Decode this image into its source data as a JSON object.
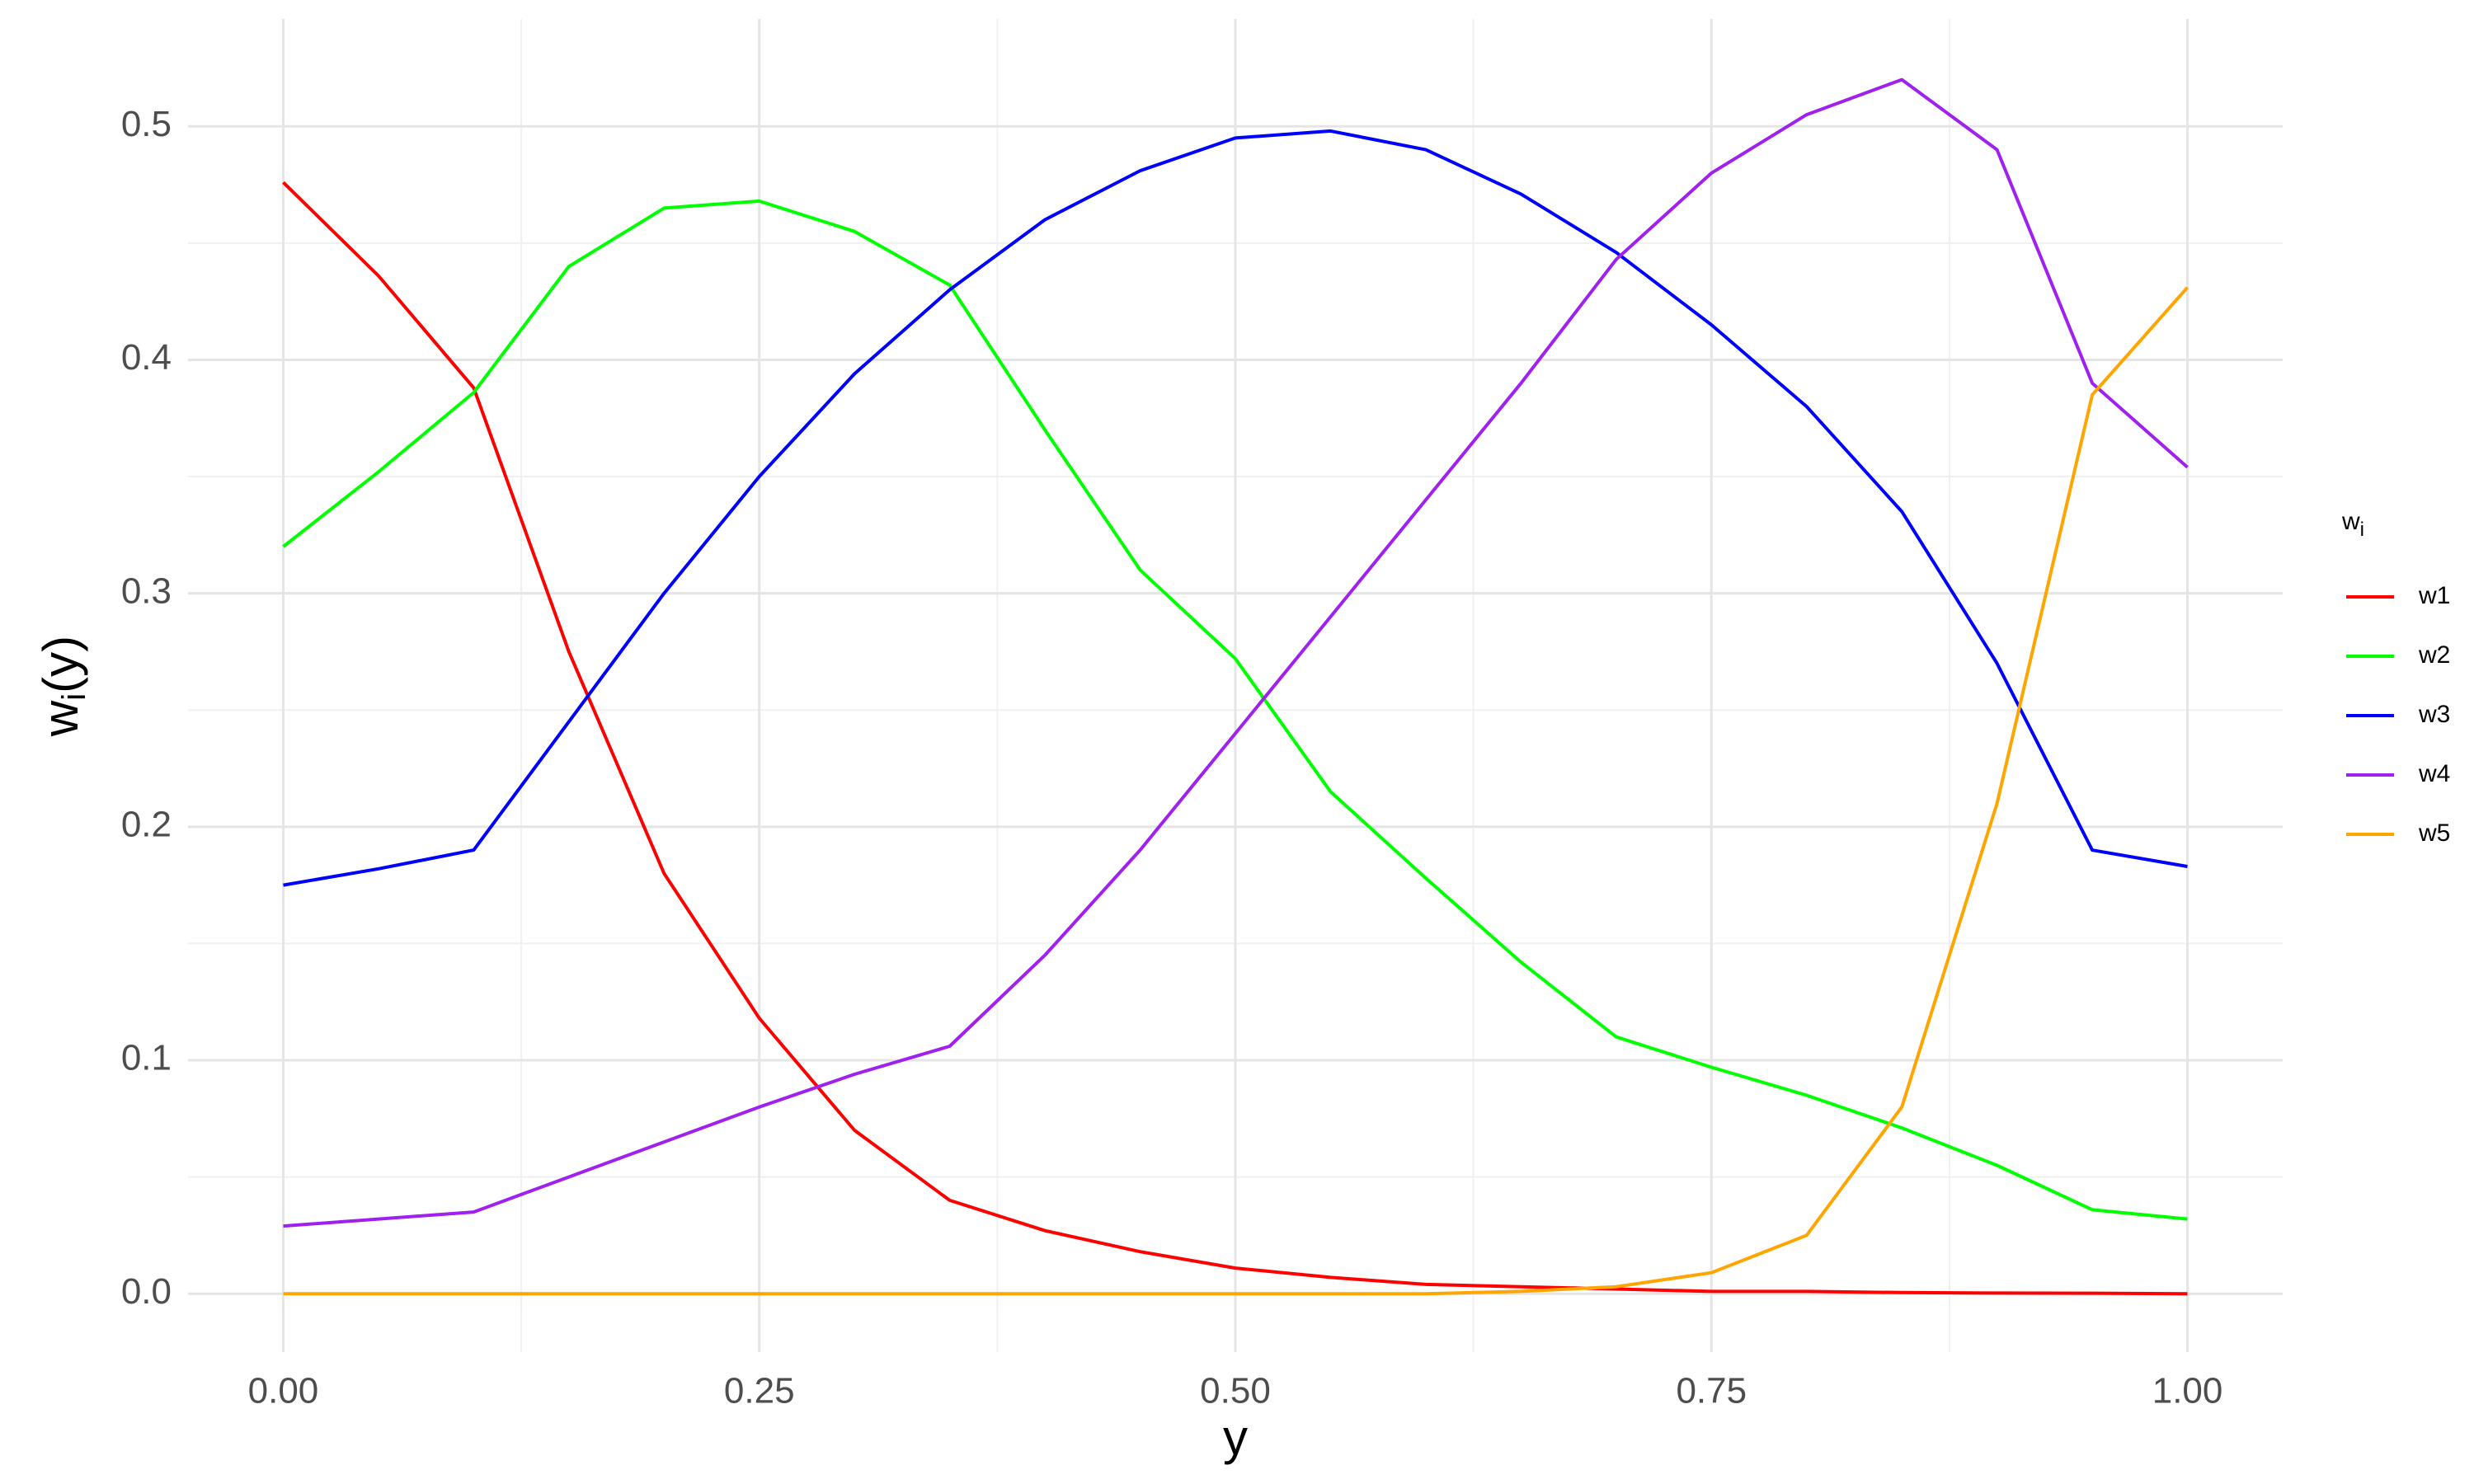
{
  "chart_data": {
    "type": "line",
    "x_label": "y",
    "y_label": {
      "base": "w",
      "sub": "i",
      "rest": "(y)"
    },
    "legend_title": {
      "base": "w",
      "sub": "i"
    },
    "legend_position": "right",
    "grid": true,
    "x": [
      0,
      0.05,
      0.1,
      0.15,
      0.2,
      0.25,
      0.3,
      0.35,
      0.4,
      0.45,
      0.5,
      0.55,
      0.6,
      0.65,
      0.7,
      0.75,
      0.8,
      0.85,
      0.9,
      0.95,
      1.0
    ],
    "series": [
      {
        "name": "w1",
        "color": "#ff0000",
        "values": [
          0.476,
          0.436,
          0.388,
          0.275,
          0.18,
          0.118,
          0.07,
          0.04,
          0.027,
          0.018,
          0.011,
          0.007,
          0.004,
          0.003,
          0.002,
          0.001,
          0.001,
          0.0005,
          0.0003,
          0.0002,
          0
        ]
      },
      {
        "name": "w2",
        "color": "#00ff00",
        "values": [
          0.32,
          0.352,
          0.386,
          0.44,
          0.465,
          0.468,
          0.455,
          0.432,
          0.37,
          0.31,
          0.272,
          0.215,
          0.178,
          0.142,
          0.11,
          0.097,
          0.085,
          0.071,
          0.055,
          0.036,
          0.032
        ]
      },
      {
        "name": "w3",
        "color": "#0000ff",
        "values": [
          0.175,
          0.182,
          0.19,
          0.245,
          0.3,
          0.35,
          0.394,
          0.43,
          0.46,
          0.481,
          0.495,
          0.498,
          0.49,
          0.471,
          0.446,
          0.415,
          0.38,
          0.335,
          0.27,
          0.19,
          0.183
        ]
      },
      {
        "name": "w4",
        "color": "#a020f0",
        "values": [
          0.029,
          0.032,
          0.035,
          0.05,
          0.065,
          0.08,
          0.094,
          0.106,
          0.145,
          0.19,
          0.24,
          0.29,
          0.34,
          0.39,
          0.443,
          0.48,
          0.505,
          0.52,
          0.49,
          0.39,
          0.354
        ]
      },
      {
        "name": "w5",
        "color": "#ffa500",
        "values": [
          0,
          0,
          0,
          0,
          0,
          0,
          0,
          0,
          0,
          0,
          0,
          0,
          0,
          0.001,
          0.003,
          0.009,
          0.025,
          0.08,
          0.21,
          0.385,
          0.431
        ]
      }
    ],
    "xlim": [
      -0.05,
      1.05
    ],
    "ylim": [
      -0.025,
      0.546
    ],
    "xticks": [
      {
        "value": 0,
        "label": "0.00"
      },
      {
        "value": 0.25,
        "label": "0.25"
      },
      {
        "value": 0.5,
        "label": "0.50"
      },
      {
        "value": 0.75,
        "label": "0.75"
      },
      {
        "value": 1,
        "label": "1.00"
      }
    ],
    "yticks": [
      {
        "value": 0,
        "label": "0.0"
      },
      0.1,
      0.2,
      0.3,
      0.4,
      0.5
    ],
    "x_minor_grid": [
      0.125,
      0.375,
      0.625,
      0.875
    ],
    "y_minor_grid": [
      0.05,
      0.15,
      0.25,
      0.35,
      0.45
    ]
  }
}
